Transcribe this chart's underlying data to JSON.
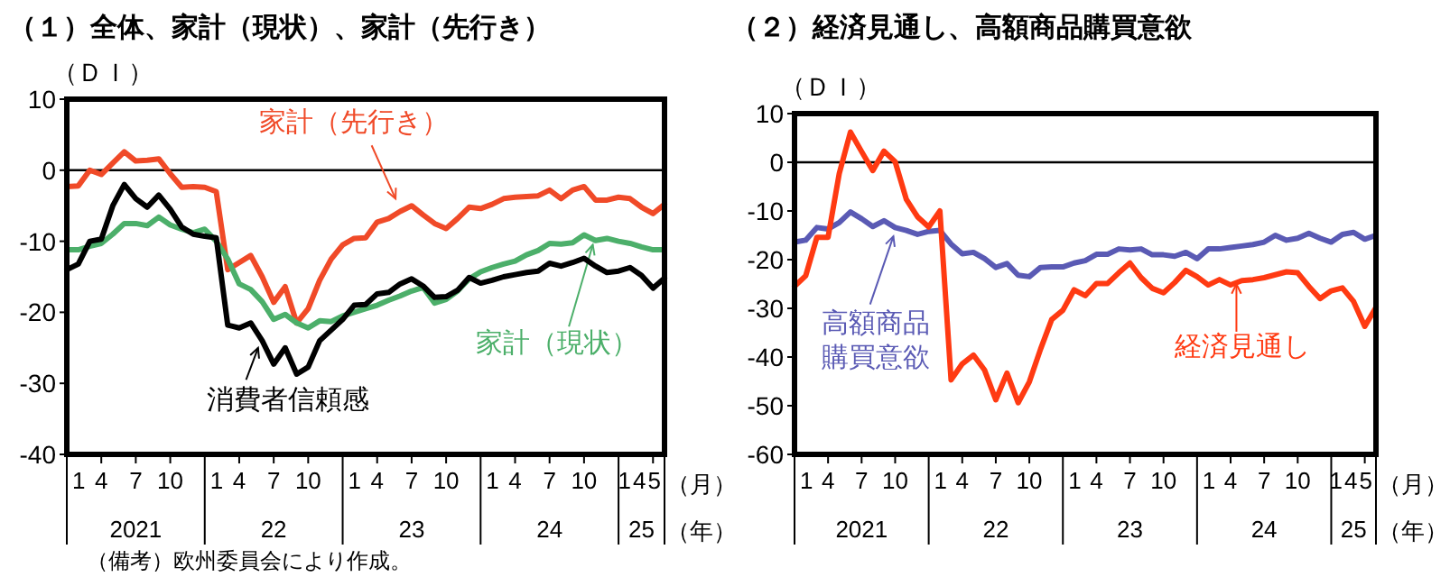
{
  "chart_data": [
    {
      "type": "line",
      "title": "（１）全体、家計（現状）、家計（先行き）",
      "ylabel": "（ＤＩ）",
      "xlabel": "（月）",
      "x2label": "（年）",
      "annotations": [
        "（備考）欧州委員会により作成。"
      ],
      "x": [
        "2021-01",
        "2021-02",
        "2021-03",
        "2021-04",
        "2021-05",
        "2021-06",
        "2021-07",
        "2021-08",
        "2021-09",
        "2021-10",
        "2021-11",
        "2021-12",
        "2022-01",
        "2022-02",
        "2022-03",
        "2022-04",
        "2022-05",
        "2022-06",
        "2022-07",
        "2022-08",
        "2022-09",
        "2022-10",
        "2022-11",
        "2022-12",
        "2023-01",
        "2023-02",
        "2023-03",
        "2023-04",
        "2023-05",
        "2023-06",
        "2023-07",
        "2023-08",
        "2023-09",
        "2023-10",
        "2023-11",
        "2023-12",
        "2024-01",
        "2024-02",
        "2024-03",
        "2024-04",
        "2024-05",
        "2024-06",
        "2024-07",
        "2024-08",
        "2024-09",
        "2024-10",
        "2024-11",
        "2024-12",
        "2025-01",
        "2025-02",
        "2025-03",
        "2025-04",
        "2025-05"
      ],
      "series": [
        {
          "name": "家計（先行き）",
          "color": "#f04a28",
          "values": [
            -2.3,
            -2.2,
            0,
            -0.6,
            1,
            2.6,
            1.3,
            1.4,
            1.6,
            -0.5,
            -2.4,
            -2.3,
            -2.4,
            -3,
            -14,
            -13,
            -12,
            -15,
            -18.6,
            -16.4,
            -21.5,
            -19.5,
            -15.5,
            -12.5,
            -10.5,
            -9.6,
            -9.5,
            -7.3,
            -6.8,
            -5.8,
            -5,
            -6.3,
            -7.5,
            -8.2,
            -6.8,
            -5.2,
            -5.4,
            -4.8,
            -4,
            -3.8,
            -3.7,
            -3.6,
            -2.8,
            -4,
            -2.8,
            -2.3,
            -4.2,
            -4.2,
            -3.8,
            -4,
            -5.2,
            -6.1,
            -4.8
          ]
        },
        {
          "name": "家計（現状）",
          "color": "#4caf6a",
          "values": [
            -11.2,
            -11.2,
            -10.7,
            -10.3,
            -9,
            -7.5,
            -7.5,
            -7.8,
            -6.6,
            -7.7,
            -8.3,
            -8.8,
            -8.3,
            -10,
            -12.5,
            -16,
            -16.8,
            -18.5,
            -21,
            -20.3,
            -21.5,
            -22.2,
            -21.2,
            -21.3,
            -20.5,
            -20,
            -19.5,
            -19,
            -18.3,
            -17.7,
            -17,
            -16.5,
            -18.7,
            -18.2,
            -17,
            -15.3,
            -14.3,
            -13.7,
            -13.2,
            -12.8,
            -11.9,
            -11.3,
            -10.3,
            -10.4,
            -10.2,
            -9.1,
            -9.9,
            -9.6,
            -10,
            -10.3,
            -10.8,
            -11.2,
            -11.2
          ]
        },
        {
          "name": "消費者信頼感",
          "color": "#000000",
          "values": [
            -14,
            -13.2,
            -10,
            -9.7,
            -5,
            -2,
            -4,
            -5.2,
            -3.5,
            -5.5,
            -8,
            -9,
            -9.3,
            -9.5,
            -21.8,
            -22.2,
            -21.5,
            -24,
            -27.3,
            -25,
            -28.7,
            -27.7,
            -24,
            -22.5,
            -21,
            -19,
            -18.9,
            -17.4,
            -17.2,
            -16,
            -15.3,
            -16.3,
            -17.9,
            -17.8,
            -16.9,
            -15.1,
            -15.9,
            -15.5,
            -15,
            -14.7,
            -14.4,
            -14.2,
            -13.1,
            -13.5,
            -13,
            -12.4,
            -13.5,
            -14.4,
            -14.2,
            -13.7,
            -14.8,
            -16.6,
            -15.2
          ]
        }
      ],
      "xlim": [
        "2021-01",
        "2025-05"
      ],
      "xticks": [
        {
          "value": "2021-01",
          "label": "1"
        },
        {
          "value": "2021-04",
          "label": "4"
        },
        {
          "value": "2021-07",
          "label": "7"
        },
        {
          "value": "2021-10",
          "label": "10"
        },
        {
          "value": "2022-01",
          "label": "1"
        },
        {
          "value": "2022-04",
          "label": "4"
        },
        {
          "value": "2022-07",
          "label": "7"
        },
        {
          "value": "2022-10",
          "label": "10"
        },
        {
          "value": "2023-01",
          "label": "1"
        },
        {
          "value": "2023-04",
          "label": "4"
        },
        {
          "value": "2023-07",
          "label": "7"
        },
        {
          "value": "2023-10",
          "label": "10"
        },
        {
          "value": "2024-01",
          "label": "1"
        },
        {
          "value": "2024-04",
          "label": "4"
        },
        {
          "value": "2024-07",
          "label": "7"
        },
        {
          "value": "2024-10",
          "label": "10"
        },
        {
          "value": "2025-01",
          "label": "1"
        },
        {
          "value": "2025-04",
          "label": "4"
        },
        {
          "value": "2025-05",
          "label": "5"
        }
      ],
      "x2ticks": [
        {
          "value": "2021-07",
          "label": "2021"
        },
        {
          "value": "2022-07",
          "label": "22"
        },
        {
          "value": "2023-07",
          "label": "23"
        },
        {
          "value": "2024-07",
          "label": "24"
        },
        {
          "value": "2025-03",
          "label": "25"
        }
      ],
      "x2lim": [
        "2021-01",
        "2025-05"
      ],
      "ylim": [
        -40,
        10
      ],
      "yticks": [
        -40,
        -30,
        -20,
        -10,
        0,
        10
      ],
      "ref_lines": [
        {
          "axis": "y",
          "value": 0,
          "color": "#000000"
        }
      ],
      "grid": false
    },
    {
      "type": "line",
      "title": "（２）経済見通し、高額商品購買意欲",
      "ylabel": "（ＤＩ）",
      "xlabel": "（月）",
      "x2label": "（年）",
      "x": [
        "2021-01",
        "2021-02",
        "2021-03",
        "2021-04",
        "2021-05",
        "2021-06",
        "2021-07",
        "2021-08",
        "2021-09",
        "2021-10",
        "2021-11",
        "2021-12",
        "2022-01",
        "2022-02",
        "2022-03",
        "2022-04",
        "2022-05",
        "2022-06",
        "2022-07",
        "2022-08",
        "2022-09",
        "2022-10",
        "2022-11",
        "2022-12",
        "2023-01",
        "2023-02",
        "2023-03",
        "2023-04",
        "2023-05",
        "2023-06",
        "2023-07",
        "2023-08",
        "2023-09",
        "2023-10",
        "2023-11",
        "2023-12",
        "2024-01",
        "2024-02",
        "2024-03",
        "2024-04",
        "2024-05",
        "2024-06",
        "2024-07",
        "2024-08",
        "2024-09",
        "2024-10",
        "2024-11",
        "2024-12",
        "2025-01",
        "2025-02",
        "2025-03",
        "2025-04",
        "2025-05"
      ],
      "series": [
        {
          "name": "高額商品購買意欲",
          "color": "#5a5ab4",
          "values": [
            -16.4,
            -16,
            -13.4,
            -13.7,
            -12.4,
            -10.2,
            -11.6,
            -13.2,
            -12,
            -13.4,
            -14,
            -14.8,
            -14.2,
            -14,
            -16.8,
            -18.8,
            -18.5,
            -19.8,
            -21.6,
            -20.8,
            -23.2,
            -23.5,
            -21.6,
            -21.5,
            -21.5,
            -20.7,
            -20.2,
            -18.9,
            -18.9,
            -17.8,
            -18,
            -17.8,
            -19,
            -19,
            -19.3,
            -18.5,
            -19.8,
            -17.8,
            -17.8,
            -17.5,
            -17.2,
            -16.9,
            -16.4,
            -15,
            -16,
            -15.6,
            -14.6,
            -15.6,
            -16.4,
            -14.8,
            -14.4,
            -15.8,
            -15
          ]
        },
        {
          "name": "経済見通し",
          "color": "#ff3a12",
          "values": [
            -25.5,
            -23.3,
            -15.4,
            -15.4,
            -2.3,
            6.2,
            2.2,
            -1.7,
            2.3,
            0.1,
            -7.6,
            -11.2,
            -13.3,
            -10,
            -44.7,
            -41.4,
            -39.6,
            -42.7,
            -48.8,
            -43.3,
            -49.4,
            -45.1,
            -38.4,
            -32.3,
            -30.4,
            -26.2,
            -27.4,
            -24.9,
            -24.9,
            -22.7,
            -20.7,
            -23.7,
            -25.9,
            -26.8,
            -24.7,
            -22.2,
            -23.5,
            -25.2,
            -24.1,
            -25.2,
            -24.3,
            -24.1,
            -23.7,
            -23.1,
            -22.5,
            -22.7,
            -25.5,
            -28,
            -26.4,
            -25.8,
            -28.6,
            -33.7,
            -29.8
          ]
        }
      ],
      "xlim": [
        "2021-01",
        "2025-05"
      ],
      "xticks": [
        {
          "value": "2021-01",
          "label": "1"
        },
        {
          "value": "2021-04",
          "label": "4"
        },
        {
          "value": "2021-07",
          "label": "7"
        },
        {
          "value": "2021-10",
          "label": "10"
        },
        {
          "value": "2022-01",
          "label": "1"
        },
        {
          "value": "2022-04",
          "label": "4"
        },
        {
          "value": "2022-07",
          "label": "7"
        },
        {
          "value": "2022-10",
          "label": "10"
        },
        {
          "value": "2023-01",
          "label": "1"
        },
        {
          "value": "2023-04",
          "label": "4"
        },
        {
          "value": "2023-07",
          "label": "7"
        },
        {
          "value": "2023-10",
          "label": "10"
        },
        {
          "value": "2024-01",
          "label": "1"
        },
        {
          "value": "2024-04",
          "label": "4"
        },
        {
          "value": "2024-07",
          "label": "7"
        },
        {
          "value": "2024-10",
          "label": "10"
        },
        {
          "value": "2025-01",
          "label": "1"
        },
        {
          "value": "2025-04",
          "label": "4"
        },
        {
          "value": "2025-05",
          "label": "5"
        }
      ],
      "x2ticks": [
        {
          "value": "2021-07",
          "label": "2021"
        },
        {
          "value": "2022-07",
          "label": "22"
        },
        {
          "value": "2023-07",
          "label": "23"
        },
        {
          "value": "2024-07",
          "label": "24"
        },
        {
          "value": "2025-03",
          "label": "25"
        }
      ],
      "x2lim": [
        "2021-01",
        "2025-05"
      ],
      "ylim": [
        -60,
        10
      ],
      "yticks": [
        -60,
        -50,
        -40,
        -30,
        -20,
        -10,
        0,
        10
      ],
      "ref_lines": [
        {
          "axis": "y",
          "value": 0,
          "color": "#000000"
        }
      ],
      "grid": false
    }
  ]
}
